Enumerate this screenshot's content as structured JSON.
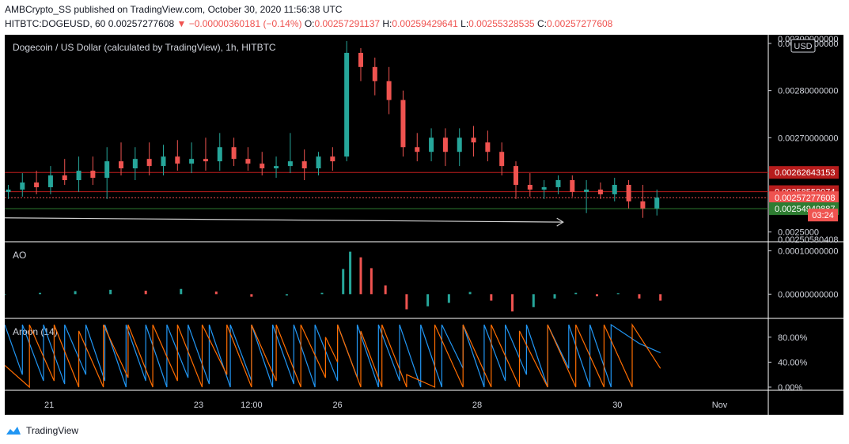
{
  "header": {
    "publisher": "AMBCrypto_SS",
    "published_text": "published on TradingView.com, October 30, 2020 11:56:38 UTC",
    "symbol": "HITBTC:DOGEUSD, 60",
    "last": "0.00257277608",
    "change": "−0.00000360181 (−0.14%)",
    "o_label": "O:",
    "o_value": "0.00257291137",
    "h_label": "H:",
    "h_value": "0.00259429641",
    "l_label": "L:",
    "l_value": "0.00255328535",
    "c_label": "C:",
    "c_value": "0.00257277608"
  },
  "footer": {
    "brand": "TradingView"
  },
  "chart_data": [
    {
      "type": "candlestick",
      "title": "Dogecoin / US Dollar (calculated by TradingView), 1h, HITBTC",
      "currency": "USD",
      "ylim": [
        0.002486,
        0.002905
      ],
      "y_ticks": [
        {
          "value": 0.0029,
          "label": "0.00290000000"
        },
        {
          "value": 0.0028,
          "label": "0.00280000000"
        },
        {
          "value": 0.0027,
          "label": "0.00270000000"
        },
        {
          "value": 0.0025,
          "label": "0.0025000"
        }
      ],
      "top_tick_label": "0.00300000000",
      "bottom_tick_label": "0.00250580408",
      "x_ticks": [
        {
          "x": 20.63,
          "label": "21"
        },
        {
          "x": 22.75,
          "label": "23"
        },
        {
          "x": 23.5,
          "label": "12:00"
        },
        {
          "x": 24.72,
          "label": "26"
        },
        {
          "x": 26.7,
          "label": "28"
        },
        {
          "x": 28.69,
          "label": "30"
        },
        {
          "x": 30.14,
          "label": "Nov"
        }
      ],
      "xlim": [
        20.0,
        30.83
      ],
      "price_lines": [
        {
          "value": 0.00262643153,
          "label": "0.00262643153",
          "color": "#b71c1c"
        },
        {
          "value": 0.00258559074,
          "label": "0.00258559074",
          "color": "#b71c1c"
        },
        {
          "value": 0.00257277608,
          "label": "0.00257277608",
          "color": "#ef5350"
        },
        {
          "value": 0.00254949887,
          "label": "0.00254949887",
          "color": "#2e7d32"
        }
      ],
      "countdown": "03:24",
      "trendline": {
        "x": [
          20.0,
          27.92
        ],
        "y": [
          0.00253,
          0.002521
        ]
      },
      "candles": [
        {
          "x": 20.05,
          "o": 0.002585,
          "h": 0.0026,
          "l": 0.00257,
          "c": 0.00259
        },
        {
          "x": 20.25,
          "o": 0.00259,
          "h": 0.002625,
          "l": 0.002575,
          "c": 0.002605
        },
        {
          "x": 20.45,
          "o": 0.002605,
          "h": 0.00263,
          "l": 0.00258,
          "c": 0.002595
        },
        {
          "x": 20.65,
          "o": 0.002595,
          "h": 0.00264,
          "l": 0.00258,
          "c": 0.00262
        },
        {
          "x": 20.85,
          "o": 0.00262,
          "h": 0.002655,
          "l": 0.0026,
          "c": 0.00261
        },
        {
          "x": 21.05,
          "o": 0.00261,
          "h": 0.00266,
          "l": 0.002585,
          "c": 0.00263
        },
        {
          "x": 21.25,
          "o": 0.00263,
          "h": 0.00266,
          "l": 0.0026,
          "c": 0.002615
        },
        {
          "x": 21.45,
          "o": 0.002615,
          "h": 0.00268,
          "l": 0.00257,
          "c": 0.00265
        },
        {
          "x": 21.65,
          "o": 0.00265,
          "h": 0.00269,
          "l": 0.00262,
          "c": 0.002635
        },
        {
          "x": 21.85,
          "o": 0.002635,
          "h": 0.00268,
          "l": 0.00261,
          "c": 0.002655
        },
        {
          "x": 22.05,
          "o": 0.002655,
          "h": 0.00269,
          "l": 0.00262,
          "c": 0.00264
        },
        {
          "x": 22.25,
          "o": 0.00264,
          "h": 0.002685,
          "l": 0.00262,
          "c": 0.00266
        },
        {
          "x": 22.45,
          "o": 0.00266,
          "h": 0.002695,
          "l": 0.00263,
          "c": 0.002645
        },
        {
          "x": 22.65,
          "o": 0.002645,
          "h": 0.00269,
          "l": 0.002625,
          "c": 0.002655
        },
        {
          "x": 22.85,
          "o": 0.002655,
          "h": 0.0027,
          "l": 0.00263,
          "c": 0.00265
        },
        {
          "x": 23.05,
          "o": 0.00265,
          "h": 0.00271,
          "l": 0.00263,
          "c": 0.00268
        },
        {
          "x": 23.25,
          "o": 0.00268,
          "h": 0.0027,
          "l": 0.00264,
          "c": 0.002655
        },
        {
          "x": 23.45,
          "o": 0.002655,
          "h": 0.00268,
          "l": 0.00263,
          "c": 0.002645
        },
        {
          "x": 23.65,
          "o": 0.002645,
          "h": 0.00267,
          "l": 0.00262,
          "c": 0.002635
        },
        {
          "x": 23.85,
          "o": 0.002635,
          "h": 0.00266,
          "l": 0.002615,
          "c": 0.00264
        },
        {
          "x": 24.05,
          "o": 0.00264,
          "h": 0.00271,
          "l": 0.002625,
          "c": 0.00265
        },
        {
          "x": 24.25,
          "o": 0.00265,
          "h": 0.002675,
          "l": 0.00261,
          "c": 0.002635
        },
        {
          "x": 24.45,
          "o": 0.002635,
          "h": 0.00267,
          "l": 0.00262,
          "c": 0.00266
        },
        {
          "x": 24.65,
          "o": 0.00266,
          "h": 0.00268,
          "l": 0.00263,
          "c": 0.00265
        },
        {
          "x": 24.85,
          "o": 0.00266,
          "h": 0.002905,
          "l": 0.00265,
          "c": 0.00288
        },
        {
          "x": 25.05,
          "o": 0.00288,
          "h": 0.00289,
          "l": 0.00282,
          "c": 0.00285
        },
        {
          "x": 25.25,
          "o": 0.00285,
          "h": 0.00287,
          "l": 0.00279,
          "c": 0.00282
        },
        {
          "x": 25.45,
          "o": 0.00282,
          "h": 0.00285,
          "l": 0.00275,
          "c": 0.00278
        },
        {
          "x": 25.65,
          "o": 0.00278,
          "h": 0.0028,
          "l": 0.00266,
          "c": 0.00268
        },
        {
          "x": 25.85,
          "o": 0.00268,
          "h": 0.00271,
          "l": 0.00265,
          "c": 0.00267
        },
        {
          "x": 26.05,
          "o": 0.00267,
          "h": 0.00272,
          "l": 0.00265,
          "c": 0.0027
        },
        {
          "x": 26.25,
          "o": 0.0027,
          "h": 0.00272,
          "l": 0.00264,
          "c": 0.00267
        },
        {
          "x": 26.45,
          "o": 0.00267,
          "h": 0.00272,
          "l": 0.00264,
          "c": 0.0027
        },
        {
          "x": 26.65,
          "o": 0.0027,
          "h": 0.002725,
          "l": 0.00266,
          "c": 0.00269
        },
        {
          "x": 26.85,
          "o": 0.00269,
          "h": 0.002715,
          "l": 0.00265,
          "c": 0.00267
        },
        {
          "x": 27.05,
          "o": 0.00267,
          "h": 0.00269,
          "l": 0.00262,
          "c": 0.00264
        },
        {
          "x": 27.25,
          "o": 0.00264,
          "h": 0.00265,
          "l": 0.00257,
          "c": 0.0026
        },
        {
          "x": 27.45,
          "o": 0.0026,
          "h": 0.002625,
          "l": 0.002575,
          "c": 0.00259
        },
        {
          "x": 27.65,
          "o": 0.00259,
          "h": 0.00261,
          "l": 0.00257,
          "c": 0.002595
        },
        {
          "x": 27.85,
          "o": 0.002595,
          "h": 0.00262,
          "l": 0.00258,
          "c": 0.00261
        },
        {
          "x": 28.05,
          "o": 0.00261,
          "h": 0.00262,
          "l": 0.002575,
          "c": 0.002585
        },
        {
          "x": 28.25,
          "o": 0.002585,
          "h": 0.00261,
          "l": 0.00254,
          "c": 0.00259
        },
        {
          "x": 28.45,
          "o": 0.00259,
          "h": 0.002605,
          "l": 0.00257,
          "c": 0.00258
        },
        {
          "x": 28.65,
          "o": 0.00258,
          "h": 0.002615,
          "l": 0.002565,
          "c": 0.0026
        },
        {
          "x": 28.85,
          "o": 0.0026,
          "h": 0.00261,
          "l": 0.00255,
          "c": 0.002565
        },
        {
          "x": 29.05,
          "o": 0.002565,
          "h": 0.0026,
          "l": 0.00253,
          "c": 0.00255
        },
        {
          "x": 29.25,
          "o": 0.00255,
          "h": 0.00259,
          "l": 0.002535,
          "c": 0.002573
        }
      ]
    },
    {
      "type": "bar",
      "title": "AO",
      "ylim": [
        -4.5e-05,
        0.00011
      ],
      "y_ticks": [
        {
          "value": 0.0001,
          "label": "0.00010000000"
        },
        {
          "value": 0.0,
          "label": "0.00000000000"
        }
      ],
      "x": [
        20.0,
        20.5,
        21.0,
        21.5,
        22.0,
        22.5,
        23.0,
        23.5,
        24.0,
        24.5,
        24.8,
        24.9,
        25.05,
        25.2,
        25.4,
        25.7,
        26.0,
        26.3,
        26.6,
        26.9,
        27.2,
        27.5,
        27.8,
        28.1,
        28.4,
        28.7,
        29.0,
        29.3
      ],
      "values": [
        0.0,
        3e-06,
        7e-06,
        1e-05,
        8e-06,
        1.2e-05,
        6e-06,
        -6e-06,
        -3e-06,
        3e-06,
        5.8e-05,
        9.8e-05,
        8.5e-05,
        6e-05,
        2e-05,
        -3.5e-05,
        -2.8e-05,
        -2e-05,
        5e-06,
        -1.5e-05,
        -4e-05,
        -3e-05,
        -1e-05,
        3e-06,
        -5e-06,
        2e-06,
        -1e-05,
        -1.5e-05
      ]
    },
    {
      "type": "line",
      "title": "Aroon (14)",
      "ylim": [
        0,
        100
      ],
      "y_ticks": [
        {
          "value": 80,
          "label": "80.00%"
        },
        {
          "value": 40,
          "label": "40.00%"
        },
        {
          "value": 0,
          "label": "0.00%"
        }
      ],
      "series": [
        {
          "color": "#2196f3",
          "x": [
            20.0,
            20.25,
            20.25,
            20.55,
            20.55,
            20.85,
            20.85,
            21.15,
            21.15,
            21.42,
            21.42,
            21.72,
            21.72,
            22.0,
            22.0,
            22.3,
            22.3,
            22.6,
            22.6,
            22.9,
            22.9,
            23.2,
            23.2,
            23.5,
            23.5,
            23.8,
            23.8,
            24.1,
            24.1,
            24.4,
            24.4,
            24.72,
            24.72,
            25.0,
            25.0,
            25.3,
            25.3,
            25.6,
            25.6,
            25.9,
            25.9,
            26.2,
            26.2,
            26.5,
            26.5,
            26.8,
            26.8,
            27.1,
            27.1,
            27.4,
            27.4,
            27.7,
            27.7,
            28.0,
            28.0,
            28.3,
            28.3,
            28.6,
            28.6,
            29.0,
            29.3
          ],
          "y": [
            100,
            20,
            100,
            10,
            100,
            5,
            100,
            20,
            100,
            10,
            100,
            0,
            100,
            10,
            100,
            0,
            100,
            15,
            100,
            5,
            100,
            0,
            100,
            10,
            100,
            0,
            100,
            5,
            100,
            0,
            100,
            10,
            100,
            15,
            100,
            0,
            100,
            10,
            100,
            0,
            100,
            0,
            100,
            30,
            100,
            0,
            100,
            10,
            100,
            20,
            100,
            0,
            100,
            30,
            100,
            0,
            100,
            0,
            100,
            70,
            55
          ]
        },
        {
          "color": "#ff6d00",
          "x": [
            20.0,
            20.35,
            20.35,
            20.7,
            20.7,
            21.05,
            21.05,
            21.4,
            21.4,
            21.75,
            21.75,
            22.1,
            22.1,
            22.45,
            22.45,
            22.8,
            22.8,
            23.15,
            23.15,
            23.5,
            23.5,
            23.85,
            23.85,
            24.2,
            24.2,
            24.55,
            24.55,
            24.72,
            24.72,
            25.05,
            25.05,
            25.35,
            25.35,
            25.7,
            25.7,
            26.1,
            26.1,
            26.5,
            26.5,
            26.9,
            26.9,
            27.3,
            27.3,
            27.7,
            27.7,
            28.1,
            28.1,
            28.5,
            28.5,
            28.9,
            28.9,
            29.3
          ],
          "y": [
            35,
            0,
            100,
            10,
            100,
            0,
            90,
            0,
            100,
            15,
            100,
            0,
            100,
            10,
            100,
            0,
            100,
            20,
            100,
            0,
            100,
            10,
            100,
            0,
            100,
            15,
            80,
            40,
            100,
            0,
            90,
            0,
            100,
            0,
            20,
            0,
            100,
            0,
            100,
            0,
            100,
            0,
            90,
            0,
            100,
            0,
            100,
            0,
            100,
            0,
            100,
            30
          ]
        }
      ]
    }
  ]
}
